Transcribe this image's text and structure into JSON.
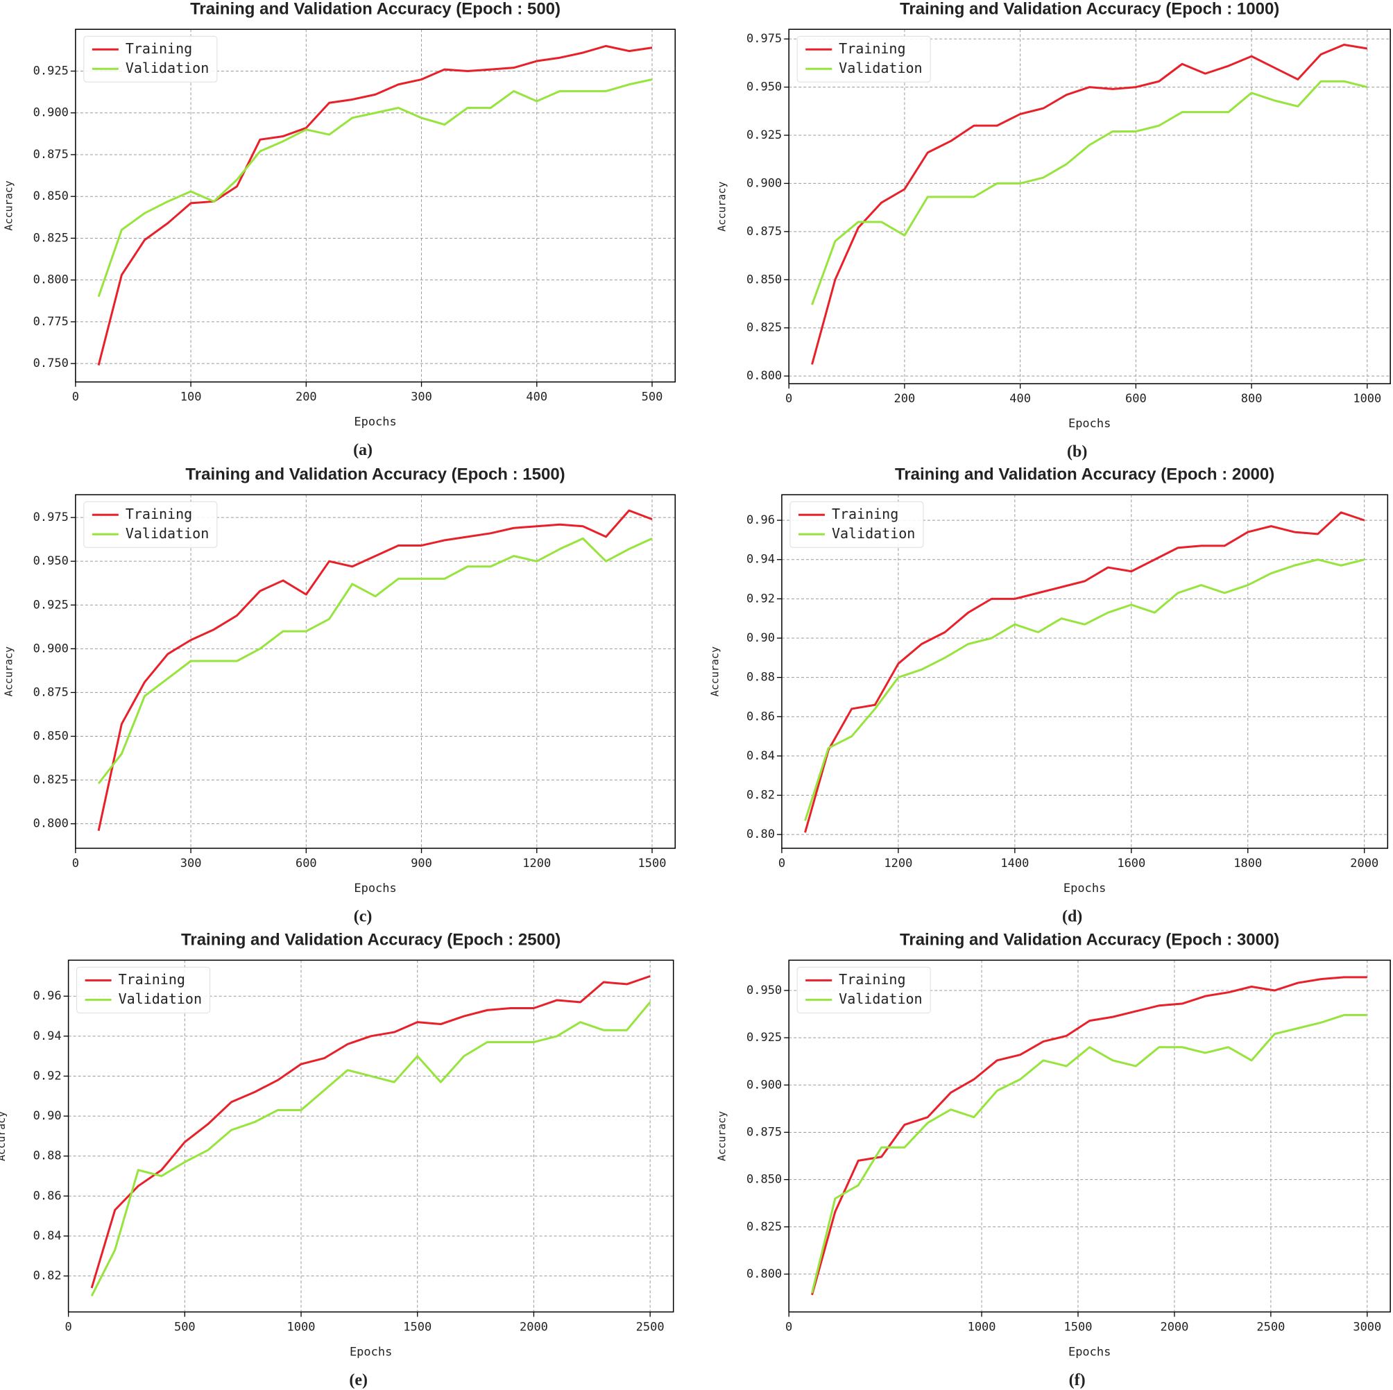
{
  "chart_data": [
    {
      "type": "line",
      "title": "Training and Validation Accuracy (Epoch : 500)",
      "caption": "(a)",
      "xlabel": "Epochs",
      "ylabel": "Accuracy",
      "grid": true,
      "legend": "upper left",
      "x": [
        20,
        40,
        60,
        80,
        100,
        120,
        140,
        160,
        180,
        200,
        220,
        240,
        260,
        280,
        300,
        320,
        340,
        360,
        380,
        400,
        420,
        440,
        460,
        480,
        500
      ],
      "series": [
        {
          "name": "Training",
          "color": "#e8202a",
          "values": [
            0.749,
            0.803,
            0.824,
            0.834,
            0.846,
            0.847,
            0.856,
            0.884,
            0.886,
            0.891,
            0.906,
            0.908,
            0.911,
            0.917,
            0.92,
            0.926,
            0.925,
            0.926,
            0.927,
            0.931,
            0.933,
            0.936,
            0.94,
            0.937,
            0.939
          ]
        },
        {
          "name": "Validation",
          "color": "#96e43c",
          "values": [
            0.79,
            0.83,
            0.84,
            0.847,
            0.853,
            0.847,
            0.86,
            0.877,
            0.883,
            0.89,
            0.887,
            0.897,
            0.9,
            0.903,
            0.897,
            0.893,
            0.903,
            0.903,
            0.913,
            0.907,
            0.913,
            0.913,
            0.913,
            0.917,
            0.92
          ]
        }
      ],
      "xlim": [
        0,
        520
      ],
      "ylim": [
        0.739,
        0.95
      ],
      "xticks": [
        0,
        100,
        200,
        300,
        400,
        500
      ],
      "yticks": [
        {
          "value": 0.75,
          "label": "0.750"
        },
        {
          "value": 0.775,
          "label": "0.775"
        },
        {
          "value": 0.8,
          "label": "0.800"
        },
        {
          "value": 0.825,
          "label": "0.825"
        },
        {
          "value": 0.85,
          "label": "0.850"
        },
        {
          "value": 0.875,
          "label": "0.875"
        },
        {
          "value": 0.9,
          "label": "0.900"
        },
        {
          "value": 0.925,
          "label": "0.925"
        }
      ]
    },
    {
      "type": "line",
      "title": "Training and Validation Accuracy (Epoch : 1000)",
      "caption": "(b)",
      "xlabel": "Epochs",
      "ylabel": "Accuracy",
      "grid": true,
      "legend": "upper left",
      "x": [
        40,
        80,
        120,
        160,
        200,
        240,
        280,
        320,
        360,
        400,
        440,
        480,
        520,
        560,
        600,
        640,
        680,
        720,
        760,
        800,
        840,
        880,
        920,
        960,
        1000
      ],
      "series": [
        {
          "name": "Training",
          "color": "#e8202a",
          "values": [
            0.806,
            0.85,
            0.877,
            0.89,
            0.897,
            0.916,
            0.922,
            0.93,
            0.93,
            0.936,
            0.939,
            0.946,
            0.95,
            0.949,
            0.95,
            0.953,
            0.962,
            0.957,
            0.961,
            0.966,
            0.96,
            0.954,
            0.967,
            0.972,
            0.97
          ]
        },
        {
          "name": "Validation",
          "color": "#96e43c",
          "values": [
            0.837,
            0.87,
            0.88,
            0.88,
            0.873,
            0.893,
            0.893,
            0.893,
            0.9,
            0.9,
            0.903,
            0.91,
            0.92,
            0.927,
            0.927,
            0.93,
            0.937,
            0.937,
            0.937,
            0.947,
            0.943,
            0.94,
            0.953,
            0.953,
            0.95
          ]
        }
      ],
      "xlim": [
        0,
        1040
      ],
      "ylim": [
        0.796,
        0.98
      ],
      "xticks": [
        0,
        200,
        400,
        600,
        800,
        1000
      ],
      "yticks": [
        {
          "value": 0.8,
          "label": "0.800"
        },
        {
          "value": 0.825,
          "label": "0.825"
        },
        {
          "value": 0.85,
          "label": "0.850"
        },
        {
          "value": 0.875,
          "label": "0.875"
        },
        {
          "value": 0.9,
          "label": "0.900"
        },
        {
          "value": 0.925,
          "label": "0.925"
        },
        {
          "value": 0.95,
          "label": "0.950"
        },
        {
          "value": 0.975,
          "label": "0.975"
        }
      ]
    },
    {
      "type": "line",
      "title": "Training and Validation Accuracy (Epoch : 1500)",
      "caption": "(c)",
      "xlabel": "Epochs",
      "ylabel": "Accuracy",
      "grid": true,
      "legend": "upper left",
      "x": [
        60,
        120,
        180,
        240,
        300,
        360,
        420,
        480,
        540,
        600,
        660,
        720,
        780,
        840,
        900,
        960,
        1020,
        1080,
        1140,
        1200,
        1260,
        1320,
        1380,
        1440,
        1500
      ],
      "series": [
        {
          "name": "Training",
          "color": "#e8202a",
          "values": [
            0.796,
            0.857,
            0.881,
            0.897,
            0.905,
            0.911,
            0.919,
            0.933,
            0.939,
            0.931,
            0.95,
            0.947,
            0.953,
            0.959,
            0.959,
            0.962,
            0.964,
            0.966,
            0.969,
            0.97,
            0.971,
            0.97,
            0.964,
            0.979,
            0.974
          ]
        },
        {
          "name": "Validation",
          "color": "#96e43c",
          "values": [
            0.823,
            0.84,
            0.873,
            0.883,
            0.893,
            0.893,
            0.893,
            0.9,
            0.91,
            0.91,
            0.917,
            0.937,
            0.93,
            0.94,
            0.94,
            0.94,
            0.947,
            0.947,
            0.953,
            0.95,
            0.957,
            0.963,
            0.95,
            0.957,
            0.963
          ]
        }
      ],
      "xlim": [
        0,
        1560
      ],
      "ylim": [
        0.786,
        0.988
      ],
      "xticks": [
        0,
        300,
        600,
        900,
        1200,
        1500
      ],
      "yticks": [
        {
          "value": 0.8,
          "label": "0.800"
        },
        {
          "value": 0.825,
          "label": "0.825"
        },
        {
          "value": 0.85,
          "label": "0.850"
        },
        {
          "value": 0.875,
          "label": "0.875"
        },
        {
          "value": 0.9,
          "label": "0.900"
        },
        {
          "value": 0.925,
          "label": "0.925"
        },
        {
          "value": 0.95,
          "label": "0.950"
        },
        {
          "value": 0.975,
          "label": "0.975"
        }
      ]
    },
    {
      "type": "line",
      "title": "Training and Validation Accuracy (Epoch : 2000)",
      "caption": "(d)",
      "xlabel": "Epochs",
      "ylabel": "Accuracy",
      "grid": true,
      "legend": "upper left",
      "x": [
        1040,
        1080,
        1120,
        1160,
        1200,
        1240,
        1280,
        1320,
        1360,
        1400,
        1440,
        1480,
        1520,
        1560,
        1600,
        1640,
        1680,
        1720,
        1760,
        1800,
        1840,
        1880,
        1920,
        1960,
        2000
      ],
      "series": [
        {
          "name": "Training",
          "color": "#e8202a",
          "values": [
            0.801,
            0.843,
            0.864,
            0.866,
            0.887,
            0.897,
            0.903,
            0.913,
            0.92,
            0.92,
            0.923,
            0.926,
            0.929,
            0.936,
            0.934,
            0.94,
            0.946,
            0.947,
            0.947,
            0.954,
            0.957,
            0.954,
            0.953,
            0.964,
            0.96
          ]
        },
        {
          "name": "Validation",
          "color": "#96e43c",
          "values": [
            0.807,
            0.844,
            0.85,
            0.864,
            0.88,
            0.884,
            0.89,
            0.897,
            0.9,
            0.907,
            0.903,
            0.91,
            0.907,
            0.913,
            0.917,
            0.913,
            0.923,
            0.927,
            0.923,
            0.927,
            0.933,
            0.937,
            0.94,
            0.937,
            0.94
          ]
        }
      ],
      "xlim": [
        1000,
        2040
      ],
      "ylim": [
        0.793,
        0.973
      ],
      "xticks": [
        {
          "value": 1000,
          "label": "0"
        },
        1200,
        1400,
        1600,
        1800,
        2000
      ],
      "yticks": [
        {
          "value": 0.8,
          "label": "0.80"
        },
        {
          "value": 0.82,
          "label": "0.82"
        },
        {
          "value": 0.84,
          "label": "0.84"
        },
        {
          "value": 0.86,
          "label": "0.86"
        },
        {
          "value": 0.88,
          "label": "0.88"
        },
        {
          "value": 0.9,
          "label": "0.90"
        },
        {
          "value": 0.92,
          "label": "0.92"
        },
        {
          "value": 0.94,
          "label": "0.94"
        },
        {
          "value": 0.96,
          "label": "0.96"
        }
      ]
    },
    {
      "type": "line",
      "title": "Training and Validation Accuracy (Epoch : 2500)",
      "caption": "(e)",
      "xlabel": "Epochs",
      "ylabel": "Accuracy",
      "grid": true,
      "legend": "upper left",
      "x": [
        100,
        200,
        300,
        400,
        500,
        600,
        700,
        800,
        900,
        1000,
        1100,
        1200,
        1300,
        1400,
        1500,
        1600,
        1700,
        1800,
        1900,
        2000,
        2100,
        2200,
        2300,
        2400,
        2500
      ],
      "series": [
        {
          "name": "Training",
          "color": "#e8202a",
          "values": [
            0.814,
            0.853,
            0.865,
            0.873,
            0.887,
            0.896,
            0.907,
            0.912,
            0.918,
            0.926,
            0.929,
            0.936,
            0.94,
            0.942,
            0.947,
            0.946,
            0.95,
            0.953,
            0.954,
            0.954,
            0.958,
            0.957,
            0.967,
            0.966,
            0.97
          ]
        },
        {
          "name": "Validation",
          "color": "#96e43c",
          "values": [
            0.81,
            0.833,
            0.873,
            0.87,
            0.877,
            0.883,
            0.893,
            0.897,
            0.903,
            0.903,
            0.913,
            0.923,
            0.92,
            0.917,
            0.93,
            0.917,
            0.93,
            0.937,
            0.937,
            0.937,
            0.94,
            0.947,
            0.943,
            0.943,
            0.957
          ]
        }
      ],
      "xlim": [
        0,
        2600
      ],
      "ylim": [
        0.802,
        0.978
      ],
      "xticks": [
        0,
        500,
        1000,
        1500,
        2000,
        2500
      ],
      "yticks": [
        {
          "value": 0.82,
          "label": "0.82"
        },
        {
          "value": 0.84,
          "label": "0.84"
        },
        {
          "value": 0.86,
          "label": "0.86"
        },
        {
          "value": 0.88,
          "label": "0.88"
        },
        {
          "value": 0.9,
          "label": "0.90"
        },
        {
          "value": 0.92,
          "label": "0.92"
        },
        {
          "value": 0.94,
          "label": "0.94"
        },
        {
          "value": 0.96,
          "label": "0.96"
        }
      ]
    },
    {
      "type": "line",
      "title": "Training and Validation Accuracy (Epoch : 3000)",
      "caption": "(f)",
      "xlabel": "Epochs",
      "ylabel": "Accuracy",
      "grid": true,
      "legend": "upper left",
      "x": [
        120,
        240,
        360,
        480,
        600,
        720,
        840,
        960,
        1080,
        1200,
        1320,
        1440,
        1560,
        1680,
        1800,
        1920,
        2040,
        2160,
        2280,
        2400,
        2520,
        2640,
        2760,
        2880,
        3000
      ],
      "series": [
        {
          "name": "Training",
          "color": "#e8202a",
          "values": [
            0.789,
            0.833,
            0.86,
            0.862,
            0.879,
            0.883,
            0.896,
            0.903,
            0.913,
            0.916,
            0.923,
            0.926,
            0.934,
            0.936,
            0.939,
            0.942,
            0.943,
            0.947,
            0.949,
            0.952,
            0.95,
            0.954,
            0.956,
            0.957,
            0.957
          ]
        },
        {
          "name": "Validation",
          "color": "#96e43c",
          "values": [
            0.79,
            0.84,
            0.847,
            0.867,
            0.867,
            0.88,
            0.887,
            0.883,
            0.897,
            0.903,
            0.913,
            0.91,
            0.92,
            0.913,
            0.91,
            0.92,
            0.92,
            0.917,
            0.92,
            0.913,
            0.927,
            0.93,
            0.933,
            0.937,
            0.937
          ]
        }
      ],
      "xlim": [
        0,
        3120
      ],
      "ylim": [
        0.78,
        0.966
      ],
      "xticks": [
        0,
        1000,
        1500,
        2000,
        2500,
        3000
      ],
      "yticks": [
        {
          "value": 0.8,
          "label": "0.800"
        },
        {
          "value": 0.825,
          "label": "0.825"
        },
        {
          "value": 0.85,
          "label": "0.850"
        },
        {
          "value": 0.875,
          "label": "0.875"
        },
        {
          "value": 0.9,
          "label": "0.900"
        },
        {
          "value": 0.925,
          "label": "0.925"
        },
        {
          "value": 0.95,
          "label": "0.950"
        }
      ]
    }
  ]
}
